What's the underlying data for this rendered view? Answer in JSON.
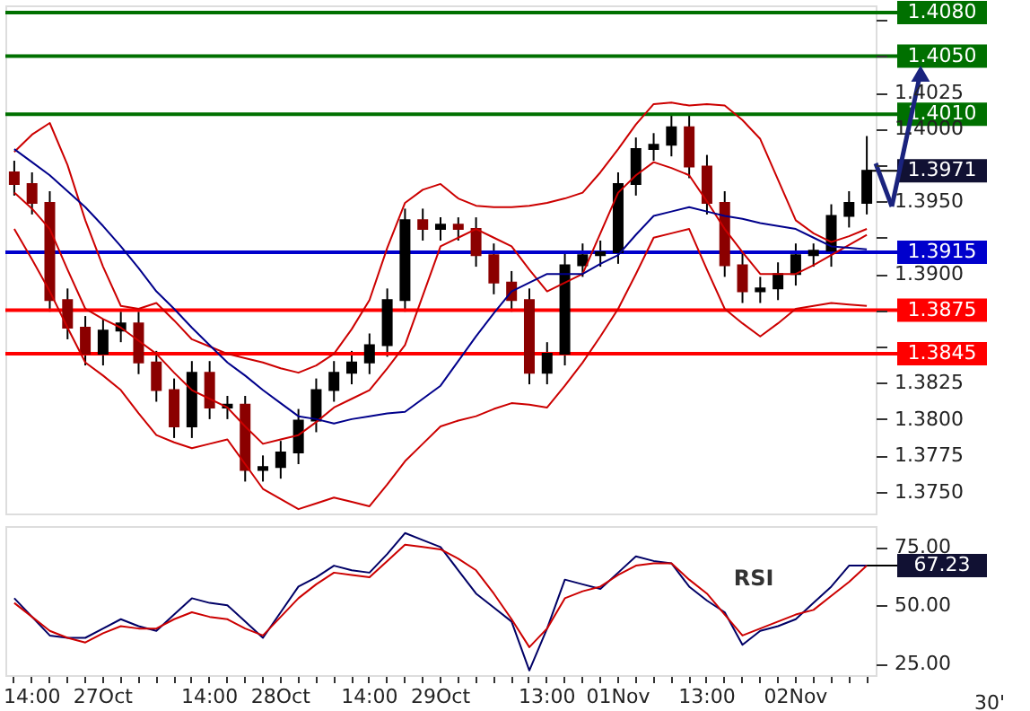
{
  "chart_data": [
    {
      "type": "candlestick",
      "categories": [
        null,
        null,
        null,
        null,
        null,
        null,
        null,
        null,
        null,
        null,
        null,
        null,
        null,
        null,
        null,
        null,
        null,
        null,
        null,
        null,
        null,
        null,
        null,
        null,
        null,
        null,
        null,
        null,
        null,
        null,
        null,
        null,
        null,
        null,
        null,
        null,
        null,
        null,
        null,
        null,
        null,
        null,
        null,
        null,
        null,
        null,
        null,
        null,
        null
      ],
      "ohlc": [
        [
          1.397,
          1.3978,
          1.3954,
          1.3962
        ],
        [
          1.3962,
          1.397,
          1.3941,
          1.3949
        ],
        [
          1.3949,
          1.3957,
          1.3874,
          1.3882
        ],
        [
          1.3882,
          1.389,
          1.3855,
          1.3863
        ],
        [
          1.3863,
          1.3871,
          1.3837,
          1.3845
        ],
        [
          1.3845,
          1.3869,
          1.3837,
          1.3861
        ],
        [
          1.3861,
          1.3874,
          1.3853,
          1.3866
        ],
        [
          1.3866,
          1.3874,
          1.3831,
          1.3839
        ],
        [
          1.3839,
          1.3847,
          1.3812,
          1.382
        ],
        [
          1.382,
          1.3828,
          1.3787,
          1.3795
        ],
        [
          1.3795,
          1.384,
          1.3787,
          1.3832
        ],
        [
          1.3832,
          1.384,
          1.38,
          1.3808
        ],
        [
          1.3808,
          1.3816,
          1.38,
          1.381
        ],
        [
          1.381,
          1.3816,
          1.3757,
          1.3765
        ],
        [
          1.3765,
          1.3775,
          1.3757,
          1.3767
        ],
        [
          1.3767,
          1.3785,
          1.3759,
          1.3777
        ],
        [
          1.3777,
          1.3807,
          1.3769,
          1.3799
        ],
        [
          1.3799,
          1.3828,
          1.3791,
          1.382
        ],
        [
          1.382,
          1.384,
          1.3812,
          1.3832
        ],
        [
          1.3832,
          1.3847,
          1.3824,
          1.3839
        ],
        [
          1.3839,
          1.3859,
          1.3831,
          1.3851
        ],
        [
          1.3851,
          1.389,
          1.3843,
          1.3882
        ],
        [
          1.3882,
          1.3945,
          1.3874,
          1.3937
        ],
        [
          1.3937,
          1.3945,
          1.3923,
          1.3931
        ],
        [
          1.3931,
          1.3939,
          1.3923,
          1.3934
        ],
        [
          1.3934,
          1.3939,
          1.3923,
          1.3931
        ],
        [
          1.3931,
          1.3939,
          1.3905,
          1.3913
        ],
        [
          1.3913,
          1.3921,
          1.3886,
          1.3894
        ],
        [
          1.3894,
          1.3902,
          1.3874,
          1.3882
        ],
        [
          1.3882,
          1.389,
          1.3824,
          1.3832
        ],
        [
          1.3832,
          1.3853,
          1.3824,
          1.3845
        ],
        [
          1.3845,
          1.3914,
          1.3837,
          1.3906
        ],
        [
          1.3906,
          1.3921,
          1.3898,
          1.3913
        ],
        [
          1.3913,
          1.3923,
          1.3905,
          1.3915
        ],
        [
          1.3915,
          1.397,
          1.3907,
          1.3962
        ],
        [
          1.3962,
          1.3994,
          1.3954,
          1.3986
        ],
        [
          1.3986,
          1.3997,
          1.3978,
          1.3989
        ],
        [
          1.3989,
          1.4009,
          1.3981,
          1.4001
        ],
        [
          1.4001,
          1.4009,
          1.3966,
          1.3974
        ],
        [
          1.3974,
          1.3982,
          1.3941,
          1.3949
        ],
        [
          1.3949,
          1.3957,
          1.3898,
          1.3906
        ],
        [
          1.3906,
          1.3914,
          1.388,
          1.3888
        ],
        [
          1.3888,
          1.3898,
          1.388,
          1.389
        ],
        [
          1.389,
          1.3908,
          1.3882,
          1.39
        ],
        [
          1.39,
          1.3921,
          1.3892,
          1.3913
        ],
        [
          1.3913,
          1.3921,
          1.3905,
          1.3916
        ],
        [
          1.3916,
          1.3948,
          1.3905,
          1.394
        ],
        [
          1.394,
          1.3957,
          1.3932,
          1.3949
        ],
        [
          1.3949,
          1.3995,
          1.3941,
          1.3971
        ]
      ],
      "series": [
        {
          "type": "line",
          "color": "#cc0000",
          "values": [
            1.3984,
            1.3996,
            1.4004,
            1.3975,
            1.3937,
            1.3905,
            1.3878,
            1.3876,
            1.388,
            1.3868,
            1.3855,
            1.385,
            1.3845,
            1.3842,
            1.3839,
            1.3835,
            1.3832,
            1.3837,
            1.3845,
            1.3862,
            1.3882,
            1.3918,
            1.3949,
            1.3958,
            1.3962,
            1.3952,
            1.3947,
            1.3946,
            1.3946,
            1.3947,
            1.3949,
            1.3952,
            1.3956,
            1.397,
            1.3986,
            1.4003,
            1.4017,
            1.4018,
            1.4016,
            1.4017,
            1.4016,
            1.4006,
            1.3993,
            1.3965,
            1.3937,
            1.3928,
            1.3922,
            1.3926,
            1.3931
          ]
        },
        {
          "type": "line",
          "color": "#cc0000",
          "values": [
            1.3956,
            1.3945,
            1.3931,
            1.3903,
            1.3876,
            1.3869,
            1.3863,
            1.3854,
            1.3845,
            1.3832,
            1.382,
            1.3814,
            1.3808,
            1.3795,
            1.3783,
            1.3786,
            1.3789,
            1.3798,
            1.3808,
            1.3814,
            1.382,
            1.3835,
            1.3851,
            1.3885,
            1.3919,
            1.3925,
            1.3931,
            1.3925,
            1.3919,
            1.3903,
            1.3888,
            1.3894,
            1.39,
            1.3928,
            1.3956,
            1.3968,
            1.3977,
            1.3973,
            1.3968,
            1.395,
            1.3931,
            1.3915,
            1.39,
            1.39,
            1.39,
            1.3906,
            1.3913,
            1.392,
            1.3927
          ]
        },
        {
          "type": "line",
          "color": "#cc0000",
          "values": [
            1.3931,
            1.391,
            1.3888,
            1.3863,
            1.3839,
            1.383,
            1.382,
            1.3804,
            1.3789,
            1.3784,
            1.378,
            1.3783,
            1.3786,
            1.3769,
            1.3752,
            1.3745,
            1.3738,
            1.3742,
            1.3746,
            1.3743,
            1.374,
            1.3755,
            1.3771,
            1.3783,
            1.3795,
            1.3799,
            1.3802,
            1.3807,
            1.3811,
            1.381,
            1.3808,
            1.3823,
            1.3839,
            1.3857,
            1.3876,
            1.39,
            1.3925,
            1.3928,
            1.3931,
            1.3903,
            1.3876,
            1.3866,
            1.3857,
            1.3866,
            1.3876,
            1.3878,
            1.388,
            1.3879,
            1.3878
          ]
        },
        {
          "type": "line",
          "color": "#00008b",
          "values": [
            1.3986,
            1.3977,
            1.3968,
            1.3957,
            1.3946,
            1.3933,
            1.3919,
            1.3904,
            1.3888,
            1.3876,
            1.3863,
            1.3851,
            1.3839,
            1.383,
            1.382,
            1.3811,
            1.3802,
            1.38,
            1.3797,
            1.38,
            1.3802,
            1.3804,
            1.3805,
            1.3814,
            1.3823,
            1.384,
            1.3857,
            1.3873,
            1.3888,
            1.3894,
            1.39,
            1.39,
            1.39,
            1.3907,
            1.3913,
            1.3927,
            1.394,
            1.3943,
            1.3946,
            1.3943,
            1.394,
            1.3938,
            1.3935,
            1.3933,
            1.3931,
            1.3925,
            1.3919,
            1.3918,
            1.3917
          ]
        }
      ],
      "ylim": [
        1.3735,
        1.4085
      ],
      "yticks": [
        {
          "value": 1.4075,
          "label": null
        },
        {
          "value": 1.405,
          "label": null
        },
        {
          "value": 1.4025,
          "label": "1.4025"
        },
        {
          "value": 1.4,
          "label": "1.4000"
        },
        {
          "value": 1.3975,
          "label": null
        },
        {
          "value": 1.395,
          "label": "1.3950"
        },
        {
          "value": 1.3925,
          "label": null
        },
        {
          "value": 1.39,
          "label": "1.3900"
        },
        {
          "value": 1.3875,
          "label": null
        },
        {
          "value": 1.385,
          "label": null
        },
        {
          "value": 1.3825,
          "label": "1.3825"
        },
        {
          "value": 1.38,
          "label": "1.3800"
        },
        {
          "value": 1.3775,
          "label": "1.3775"
        },
        {
          "value": 1.375,
          "label": "1.3750"
        }
      ],
      "ref_lines": [
        {
          "axis": "y",
          "value": 1.408,
          "label": "1.4080",
          "color": "#007000"
        },
        {
          "axis": "y",
          "value": 1.405,
          "label": "1.4050",
          "color": "#007000"
        },
        {
          "axis": "y",
          "value": 1.401,
          "label": "1.4010",
          "color": "#007000"
        },
        {
          "axis": "y",
          "value": 1.3915,
          "label": "1.3915",
          "color": "#0000cc"
        },
        {
          "axis": "y",
          "value": 1.3875,
          "label": "1.3875",
          "color": "#ff0000"
        },
        {
          "axis": "y",
          "value": 1.3845,
          "label": "1.3845",
          "color": "#ff0000"
        }
      ],
      "annotations": [
        "1.3971"
      ],
      "tick_labels": "y"
    },
    {
      "type": "line",
      "categories": [
        null,
        "14:00",
        null,
        null,
        null,
        "27Oct",
        null,
        null,
        null,
        null,
        null,
        "14:00",
        null,
        null,
        null,
        "28Oct",
        null,
        null,
        null,
        null,
        "14:00",
        null,
        null,
        null,
        "29Oct",
        null,
        null,
        null,
        null,
        null,
        "13:00",
        null,
        null,
        null,
        "01Nov",
        null,
        null,
        null,
        null,
        "13:00",
        null,
        null,
        null,
        null,
        "02Nov",
        null,
        null,
        null,
        null
      ],
      "series": [
        {
          "name": "RSI",
          "color": "#000066",
          "values": [
            53,
            45,
            37,
            36,
            36,
            40,
            44,
            41,
            39,
            46,
            53,
            51,
            50,
            43,
            36,
            47,
            58,
            62,
            67,
            65,
            64,
            72,
            81,
            78,
            75,
            65,
            55,
            49,
            43,
            22,
            40,
            61,
            59,
            57,
            64,
            71,
            69,
            68,
            58,
            52,
            47,
            33,
            39,
            41,
            44,
            51,
            58,
            67,
            67
          ]
        },
        {
          "color": "#cc0000",
          "values": [
            51,
            45,
            39,
            36,
            34,
            38,
            41,
            40,
            40,
            44,
            47,
            45,
            44,
            40,
            37,
            45,
            53,
            59,
            64,
            63,
            62,
            69,
            76,
            75,
            74,
            70,
            65,
            55,
            44,
            32,
            40,
            53,
            56,
            58,
            63,
            67,
            68,
            68,
            61,
            55,
            46,
            37,
            40,
            43,
            46,
            48,
            54,
            60,
            67
          ]
        }
      ],
      "ylim": [
        20,
        84
      ],
      "yticks": [
        {
          "value": 25,
          "label": "25.00"
        },
        {
          "value": 50,
          "label": "50.00"
        },
        {
          "value": 75,
          "label": "75.00"
        }
      ],
      "annotations": [
        "67.23",
        "30'"
      ]
    }
  ]
}
